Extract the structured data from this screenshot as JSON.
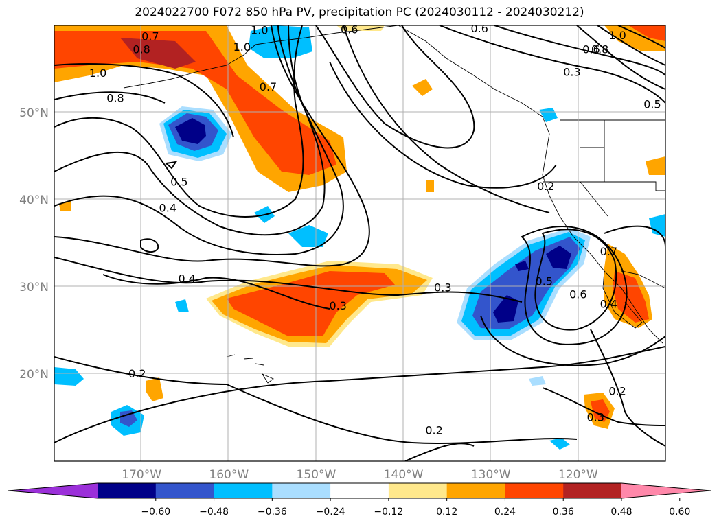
{
  "title": "2024022700 F072 850 hPa PV, precipitation PC (2024030112 - 2024030212)",
  "map": {
    "lon_range": [
      -180,
      -110
    ],
    "lat_range": [
      10,
      60
    ],
    "lat_ticks": [
      {
        "lat": 50,
        "label": "50°N"
      },
      {
        "lat": 40,
        "label": "40°N"
      },
      {
        "lat": 30,
        "label": "30°N"
      },
      {
        "lat": 20,
        "label": "20°N"
      }
    ],
    "lon_ticks": [
      {
        "lon": -170,
        "label": "170°W"
      },
      {
        "lon": -160,
        "label": "160°W"
      },
      {
        "lon": -150,
        "label": "150°W"
      },
      {
        "lon": -140,
        "label": "140°W"
      },
      {
        "lon": -130,
        "label": "130°W"
      },
      {
        "lon": -120,
        "label": "120°W"
      }
    ],
    "grid": true,
    "contour_labels": [
      {
        "text": "0.7",
        "lon": -169.0,
        "lat": 58.7
      },
      {
        "text": "0.8",
        "lon": -170.0,
        "lat": 57.2
      },
      {
        "text": "1.0",
        "lon": -175.0,
        "lat": 54.5
      },
      {
        "text": "0.8",
        "lon": -173.0,
        "lat": 51.6
      },
      {
        "text": "1.0",
        "lon": -158.5,
        "lat": 57.5
      },
      {
        "text": "1.0",
        "lon": -156.5,
        "lat": 59.4
      },
      {
        "text": "0.7",
        "lon": -155.5,
        "lat": 52.9
      },
      {
        "text": "0.6",
        "lon": -146.2,
        "lat": 59.5
      },
      {
        "text": "0.6",
        "lon": -131.3,
        "lat": 59.6
      },
      {
        "text": "0.3",
        "lon": -120.7,
        "lat": 54.6
      },
      {
        "text": "0.6",
        "lon": -118.5,
        "lat": 57.2
      },
      {
        "text": "0.8",
        "lon": -117.5,
        "lat": 57.2
      },
      {
        "text": "1.0",
        "lon": -115.5,
        "lat": 58.8
      },
      {
        "text": "0.5",
        "lon": -111.5,
        "lat": 50.9
      },
      {
        "text": "0.5",
        "lon": -165.7,
        "lat": 42.0
      },
      {
        "text": "0.4",
        "lon": -167.0,
        "lat": 39.0
      },
      {
        "text": "0.2",
        "lon": -123.7,
        "lat": 41.5
      },
      {
        "text": "0.4",
        "lon": -164.8,
        "lat": 30.9
      },
      {
        "text": "0.3",
        "lon": -135.5,
        "lat": 29.9
      },
      {
        "text": "0.3",
        "lon": -147.5,
        "lat": 27.8
      },
      {
        "text": "0.5",
        "lon": -123.9,
        "lat": 30.6
      },
      {
        "text": "0.6",
        "lon": -120.0,
        "lat": 29.1
      },
      {
        "text": "0.7",
        "lon": -116.5,
        "lat": 34.0
      },
      {
        "text": "0.4",
        "lon": -116.5,
        "lat": 28.0
      },
      {
        "text": "0.2",
        "lon": -115.5,
        "lat": 18.0
      },
      {
        "text": "0.2",
        "lon": -170.5,
        "lat": 20.0
      },
      {
        "text": "0.3",
        "lon": -118.0,
        "lat": 15.0
      },
      {
        "text": "0.2",
        "lon": -136.5,
        "lat": 13.5
      }
    ]
  },
  "colorbar": {
    "colors": [
      "#9b30d9",
      "#000088",
      "#3355cc",
      "#00bfff",
      "#aadeff",
      "#ffffff",
      "#ffe88c",
      "#ffa500",
      "#ff4500",
      "#b22222",
      "#ff88aa"
    ],
    "labels": [
      "−0.60",
      "−0.48",
      "−0.36",
      "−0.24",
      "−0.12",
      "0.12",
      "0.24",
      "0.36",
      "0.48",
      "0.60"
    ],
    "extend": "both"
  }
}
